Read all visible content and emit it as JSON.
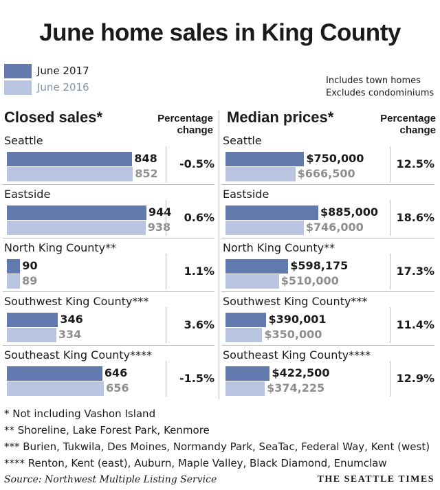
{
  "title": "June home sales in King County",
  "legend": [
    {
      "label": "June 2017",
      "color": "#6179ac"
    },
    {
      "label": "June 2016",
      "color": "#b9c4e0"
    }
  ],
  "notes": [
    "Includes town homes",
    "Excludes condominiums"
  ],
  "sections": {
    "closed": {
      "heading": "Closed sales*",
      "pct_heading": [
        "Percentage",
        "change"
      ]
    },
    "median": {
      "heading": "Median prices*",
      "pct_heading": [
        "Percentage",
        "change"
      ]
    }
  },
  "chart_data": [
    {
      "type": "bar",
      "title": "Closed sales*",
      "categories": [
        "Seattle",
        "Eastside",
        "North King County**",
        "Southwest King County***",
        "Southeast King County****"
      ],
      "series": [
        {
          "name": "June 2017",
          "values": [
            848,
            944,
            90,
            346,
            646
          ]
        },
        {
          "name": "June 2016",
          "values": [
            852,
            938,
            89,
            334,
            656
          ]
        }
      ],
      "value_labels": {
        "June 2017": [
          "848",
          "944",
          "90",
          "346",
          "646"
        ],
        "June 2016": [
          "852",
          "938",
          "89",
          "334",
          "656"
        ]
      },
      "percent_change": [
        "-0.5%",
        "0.6%",
        "1.1%",
        "3.6%",
        "-1.5%"
      ],
      "xlim": [
        0,
        944
      ]
    },
    {
      "type": "bar",
      "title": "Median prices*",
      "categories": [
        "Seattle",
        "Eastside",
        "North King County**",
        "Southwest King County***",
        "Southeast King County****"
      ],
      "series": [
        {
          "name": "June 2017",
          "values": [
            750000,
            885000,
            598175,
            390001,
            422500
          ]
        },
        {
          "name": "June 2016",
          "values": [
            666500,
            746000,
            510000,
            350000,
            374225
          ]
        }
      ],
      "value_labels": {
        "June 2017": [
          "$750,000",
          "$885,000",
          "$598,175",
          "$390,001",
          "$422,500"
        ],
        "June 2016": [
          "$666,500",
          "$746,000",
          "$510,000",
          "$350,000",
          "$374,225"
        ]
      },
      "percent_change": [
        "12.5%",
        "18.6%",
        "17.3%",
        "11.4%",
        "12.9%"
      ],
      "xlim": [
        0,
        885000
      ]
    }
  ],
  "footnotes": [
    "* Not including Vashon Island",
    "**  Shoreline, Lake Forest Park, Kenmore",
    "*** Burien, Tukwila, Des Moines, Normandy Park, SeaTac, Federal Way, Kent (west)",
    "**** Renton, Kent (east), Auburn, Maple Valley, Black Diamond, Enumclaw"
  ],
  "source": "Source: Northwest Multiple Listing Service",
  "brand": "THE SEATTLE TIMES"
}
